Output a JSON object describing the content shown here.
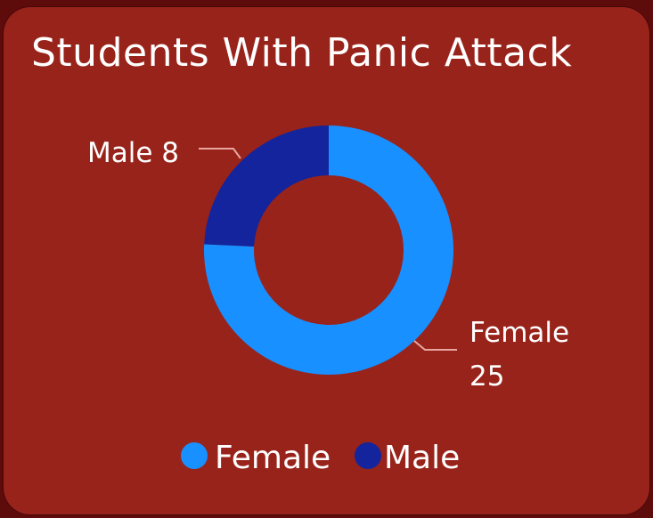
{
  "colors": {
    "background": "#5e0b0b",
    "card": "#98231a",
    "female": "#1890ff",
    "male": "#13249c",
    "leader": "#e8a6a0",
    "text": "#ffffff"
  },
  "chart_data": {
    "type": "pie",
    "title": "Students With Panic Attack",
    "categories": [
      "Female",
      "Male"
    ],
    "values": [
      25,
      8
    ],
    "donut": true,
    "legend_position": "bottom",
    "data_labels": [
      {
        "category": "Female",
        "value": "25"
      },
      {
        "category": "Male",
        "value": "8"
      }
    ]
  }
}
